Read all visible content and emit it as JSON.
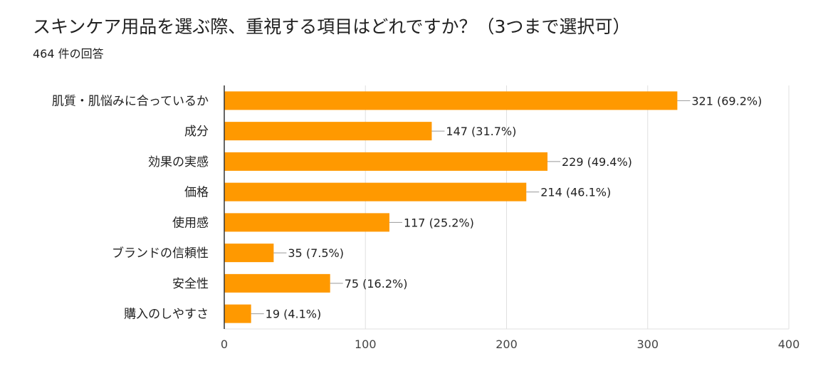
{
  "header": {
    "title": "スキンケア用品を選ぶ際、重視する項目はどれですか？（3つまで選択可）",
    "subtitle": "464 件の回答"
  },
  "colors": {
    "bar": "#FF9900",
    "grid": "#E0E0E0",
    "axis": "#333333",
    "leader": "#999999"
  },
  "chart_data": {
    "type": "bar",
    "orientation": "horizontal",
    "title": "スキンケア用品を選ぶ際、重視する項目はどれですか？（3つまで選択可）",
    "categories": [
      "肌質・肌悩みに合っているか",
      "成分",
      "効果の実感",
      "価格",
      "使用感",
      "ブランドの信頼性",
      "安全性",
      "購入のしやすさ"
    ],
    "values": [
      321,
      147,
      229,
      214,
      117,
      35,
      75,
      19
    ],
    "labels": [
      "321 (69.2%)",
      "147 (31.7%)",
      "229 (49.4%)",
      "214 (46.1%)",
      "117 (25.2%)",
      "35 (7.5%)",
      "75 (16.2%)",
      "19 (4.1%)"
    ],
    "xlim": [
      0,
      400
    ],
    "xticks": [
      0,
      100,
      200,
      300,
      400
    ],
    "xtick_labels": [
      "0",
      "100",
      "200",
      "300",
      "400"
    ],
    "grid": true,
    "xlabel": "",
    "ylabel": ""
  }
}
